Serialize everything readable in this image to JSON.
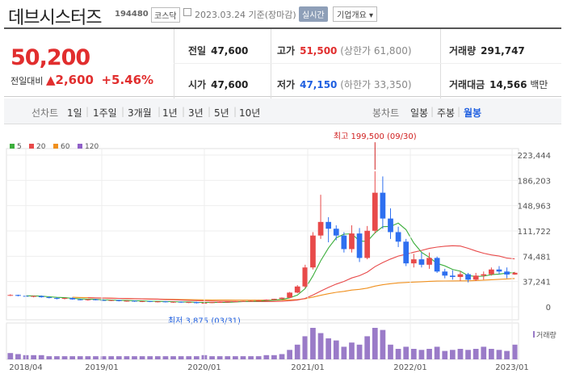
{
  "header": {
    "name": "데브시스터즈",
    "code": "194480",
    "market": "코스닥",
    "date": "2023.03.24 기준(장마감)",
    "realtime_button": "실시간",
    "company_info_select": "기업개요 ▾"
  },
  "summary": {
    "price": "50,200",
    "change_label": "전일대비",
    "change_value": "▲2,600",
    "change_pct": "+5.46%",
    "prev_close": {
      "label": "전일",
      "value": "47,600"
    },
    "open": {
      "label": "시가",
      "value": "47,600"
    },
    "high": {
      "label": "고가",
      "value": "51,500",
      "sub": "(상한가 61,800)"
    },
    "low": {
      "label": "저가",
      "value": "47,150",
      "sub": "(하한가 33,350)"
    },
    "volume": {
      "label": "거래량",
      "value": "291,747"
    },
    "trade_value": {
      "label": "거래대금",
      "value": "14,566",
      "unit": "백만"
    }
  },
  "tabs": {
    "line_label": "선차트",
    "periods": [
      "1일",
      "1주일",
      "3개월",
      "1년",
      "3년",
      "5년",
      "10년"
    ],
    "candle_label": "봉차트",
    "candle_periods": [
      "일봉",
      "주봉",
      "월봉"
    ],
    "active_candle": "월봉"
  },
  "legend": [
    {
      "label": "5",
      "color": "#3cae3c"
    },
    {
      "label": "20",
      "color": "#e84a4a"
    },
    {
      "label": "60",
      "color": "#f0901e"
    },
    {
      "label": "120",
      "color": "#9060c8"
    }
  ],
  "chart_data": {
    "type": "candlestick",
    "y_ticks": [
      "223,444",
      "186,203",
      "148,963",
      "111,722",
      "74,481",
      "37,241",
      "0"
    ],
    "x_ticks": [
      "2018/04",
      "2019/01",
      "2020/01",
      "2021/01",
      "2022/01",
      "2023/01"
    ],
    "high_annotation": "최고 199,500 (09/30)",
    "low_annotation": "최저 3,875 (03/31)",
    "volume_label": "거래량",
    "candles": [
      [
        17000,
        18500,
        16000,
        17500
      ],
      [
        17500,
        18000,
        15500,
        16200
      ],
      [
        16200,
        17000,
        14500,
        15000
      ],
      [
        15000,
        16500,
        14000,
        16000
      ],
      [
        16000,
        16800,
        13500,
        14200
      ],
      [
        14200,
        15500,
        12500,
        13000
      ],
      [
        13000,
        14000,
        11000,
        11800
      ],
      [
        11800,
        13500,
        11000,
        13000
      ],
      [
        13000,
        13800,
        10500,
        11000
      ],
      [
        11000,
        12000,
        9500,
        10200
      ],
      [
        10200,
        11500,
        9000,
        11000
      ],
      [
        11000,
        11800,
        9500,
        10000
      ],
      [
        10000,
        11000,
        9000,
        9500
      ],
      [
        9500,
        10500,
        8500,
        10000
      ],
      [
        10000,
        10500,
        8000,
        8500
      ],
      [
        8500,
        9500,
        7500,
        9000
      ],
      [
        9000,
        9500,
        7500,
        8000
      ],
      [
        8000,
        9000,
        7000,
        8500
      ],
      [
        8500,
        9000,
        7000,
        7500
      ],
      [
        7500,
        8500,
        6500,
        8000
      ],
      [
        8000,
        8500,
        6500,
        7000
      ],
      [
        7000,
        8000,
        6000,
        7500
      ],
      [
        7500,
        8000,
        6000,
        6500
      ],
      [
        6500,
        7500,
        5500,
        7000
      ],
      [
        7000,
        7500,
        5000,
        5500
      ],
      [
        5500,
        6500,
        3875,
        6000
      ],
      [
        6000,
        7000,
        5500,
        6800
      ],
      [
        6800,
        7500,
        6000,
        7200
      ],
      [
        7200,
        8000,
        6500,
        7600
      ],
      [
        7600,
        8500,
        7000,
        8200
      ],
      [
        8200,
        9000,
        7500,
        8600
      ],
      [
        8600,
        9500,
        8000,
        9000
      ],
      [
        9000,
        10000,
        8500,
        9600
      ],
      [
        9600,
        11000,
        9000,
        10500
      ],
      [
        10500,
        12000,
        10000,
        11800
      ],
      [
        11800,
        14000,
        11000,
        13500
      ],
      [
        13500,
        22000,
        13000,
        21000
      ],
      [
        21000,
        32000,
        20000,
        30000
      ],
      [
        30000,
        62000,
        28000,
        58000
      ],
      [
        58000,
        110000,
        55000,
        105000
      ],
      [
        105000,
        165000,
        100000,
        125000
      ],
      [
        125000,
        132000,
        95000,
        115000
      ],
      [
        115000,
        120000,
        98000,
        105000
      ],
      [
        105000,
        110000,
        80000,
        85000
      ],
      [
        85000,
        120000,
        80000,
        108000
      ],
      [
        108000,
        116000,
        66000,
        72000
      ],
      [
        72000,
        119000,
        70000,
        112000
      ],
      [
        112000,
        199500,
        108000,
        168000
      ],
      [
        168000,
        192000,
        115000,
        130000
      ],
      [
        130000,
        145000,
        100000,
        110000
      ],
      [
        110000,
        118000,
        88000,
        96000
      ],
      [
        96000,
        100000,
        60000,
        64000
      ],
      [
        64000,
        78000,
        58000,
        70000
      ],
      [
        70000,
        80000,
        58000,
        62000
      ],
      [
        62000,
        80000,
        56000,
        72000
      ],
      [
        72000,
        74000,
        50000,
        52000
      ],
      [
        52000,
        56000,
        42000,
        46000
      ],
      [
        46000,
        54000,
        40000,
        44000
      ],
      [
        44000,
        52000,
        38000,
        48000
      ],
      [
        48000,
        50000,
        36000,
        40000
      ],
      [
        40000,
        50000,
        38000,
        46000
      ],
      [
        46000,
        52000,
        40000,
        48000
      ],
      [
        48000,
        58000,
        46000,
        55000
      ],
      [
        55000,
        60000,
        48000,
        52000
      ],
      [
        52000,
        58000,
        42000,
        47600
      ],
      [
        47600,
        51500,
        47150,
        50200
      ]
    ],
    "volumes": [
      6,
      5,
      4,
      4,
      4,
      3,
      3,
      3,
      3,
      3,
      3,
      3,
      3,
      3,
      3,
      3,
      3,
      3,
      3,
      3,
      3,
      3,
      3,
      3,
      3,
      4,
      3,
      3,
      3,
      3,
      3,
      3,
      3,
      4,
      4,
      5,
      9,
      14,
      22,
      30,
      25,
      20,
      18,
      12,
      16,
      14,
      22,
      30,
      28,
      14,
      10,
      12,
      10,
      9,
      10,
      12,
      8,
      9,
      10,
      9,
      10,
      12,
      10,
      9,
      8,
      14
    ]
  }
}
